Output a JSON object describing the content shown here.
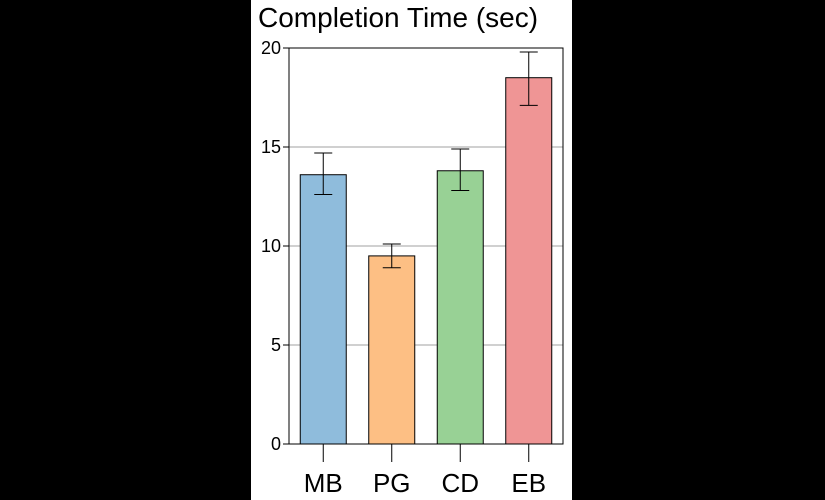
{
  "chart_data": {
    "type": "bar",
    "title": "Completion Time (sec)",
    "xlabel": "",
    "ylabel": "",
    "categories": [
      "MB",
      "PG",
      "CD",
      "EB"
    ],
    "values": [
      13.6,
      9.5,
      13.8,
      18.5
    ],
    "error_low": [
      12.6,
      8.9,
      12.8,
      17.1
    ],
    "error_high": [
      14.7,
      10.1,
      14.9,
      19.8
    ],
    "colors": [
      "#8fbcdc",
      "#fdbf84",
      "#98d195",
      "#ef9595"
    ],
    "ylim": [
      0,
      20
    ],
    "yticks": [
      0,
      5,
      10,
      15,
      20
    ],
    "grid": true
  }
}
